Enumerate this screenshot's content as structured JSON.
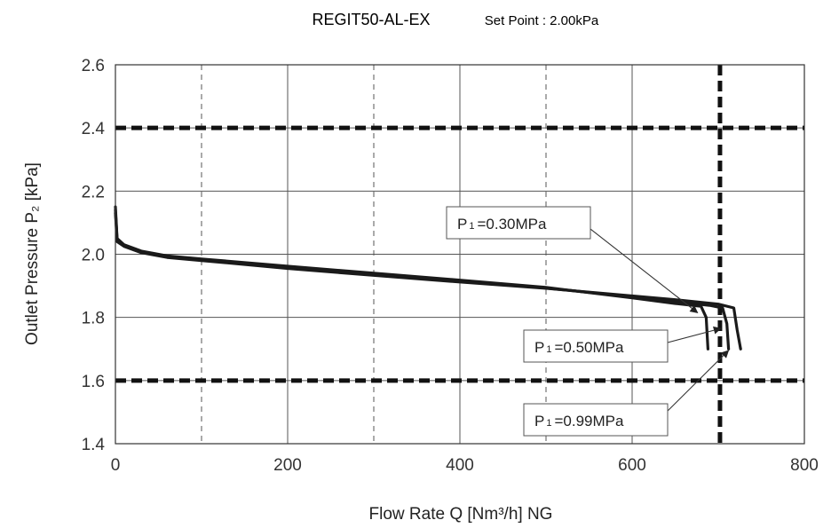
{
  "chart_data": {
    "type": "line",
    "title": "REGIT50-AL-EX",
    "subtitle": "Set Point : 2.00kPa",
    "xlabel": "Flow Rate Q [Nm³/h] NG",
    "ylabel": "Outlet Pressure P₂ [kPa]",
    "xlim": [
      0,
      800
    ],
    "ylim": [
      1.4,
      2.6
    ],
    "xticks": [
      0,
      200,
      400,
      600,
      800
    ],
    "yticks": [
      1.4,
      1.6,
      1.8,
      2.0,
      2.2,
      2.4,
      2.6
    ],
    "xtick_labels": [
      "0",
      "200",
      "400",
      "600",
      "800"
    ],
    "ytick_labels": [
      "1.4",
      "1.6",
      "1.8",
      "2.0",
      "2.2",
      "2.4",
      "2.6"
    ],
    "minor_vlines": [
      100,
      300,
      500
    ],
    "limit_lines": {
      "y_upper": 2.4,
      "y_lower": 1.6,
      "x_max": 702
    },
    "grid": true,
    "series": [
      {
        "name": "P₁=0.30MPa",
        "x": [
          0,
          2,
          10,
          30,
          60,
          100,
          200,
          300,
          400,
          500,
          600,
          650,
          680,
          686,
          688
        ],
        "y": [
          2.15,
          2.05,
          2.03,
          2.01,
          1.995,
          1.985,
          1.962,
          1.94,
          1.918,
          1.895,
          1.862,
          1.844,
          1.835,
          1.8,
          1.7
        ]
      },
      {
        "name": "P₁=0.50MPa",
        "x": [
          0,
          2,
          10,
          30,
          60,
          100,
          200,
          300,
          400,
          500,
          600,
          650,
          690,
          705,
          710,
          712
        ],
        "y": [
          2.14,
          2.045,
          2.028,
          2.008,
          1.993,
          1.982,
          1.958,
          1.936,
          1.915,
          1.893,
          1.865,
          1.85,
          1.838,
          1.83,
          1.78,
          1.7
        ]
      },
      {
        "name": "P₁=0.99MPa",
        "x": [
          0,
          2,
          10,
          30,
          60,
          100,
          200,
          300,
          400,
          500,
          600,
          650,
          700,
          718,
          722,
          726
        ],
        "y": [
          2.13,
          2.04,
          2.025,
          2.005,
          1.99,
          1.98,
          1.955,
          1.933,
          1.912,
          1.892,
          1.868,
          1.856,
          1.842,
          1.83,
          1.76,
          1.7
        ]
      }
    ],
    "annotations": [
      {
        "prefix": "P",
        "sub": "1",
        "value": "=0.30MPa",
        "series": 0
      },
      {
        "prefix": "P",
        "sub": "1",
        "value": "=0.50MPa",
        "series": 1
      },
      {
        "prefix": "P",
        "sub": "1",
        "value": "=0.99MPa",
        "series": 2
      }
    ]
  }
}
